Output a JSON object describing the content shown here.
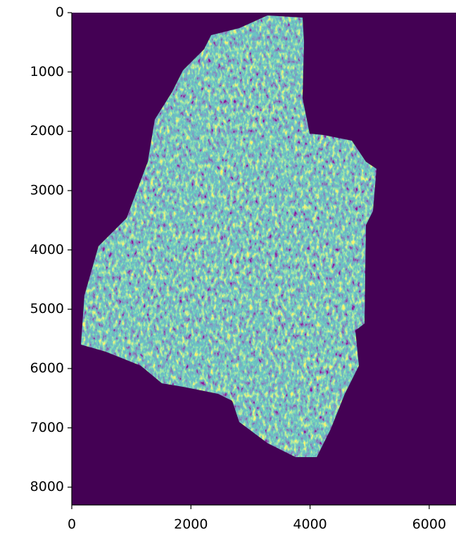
{
  "chart_data": {
    "type": "image",
    "colormap": "viridis",
    "xlim": [
      0,
      6450
    ],
    "ylim": [
      8300,
      0
    ],
    "xticks": [
      0,
      2000,
      4000,
      6000
    ],
    "yticks": [
      0,
      1000,
      2000,
      3000,
      4000,
      5000,
      6000,
      7000,
      8000
    ],
    "grid": false
  }
}
